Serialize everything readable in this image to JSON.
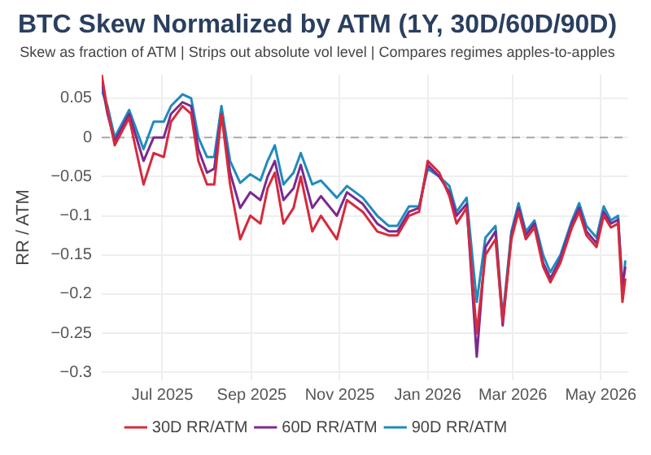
{
  "chart_data": {
    "type": "line",
    "title": "BTC Skew Normalized by ATM (1Y, 30D/60D/90D)",
    "subtitle": "Skew as fraction of ATM | Strips out absolute vol level | Compares regimes apples-to-apples",
    "ylabel": "RR / ATM",
    "x": [
      "2025-05-20",
      "2025-05-24",
      "2025-05-29",
      "2025-06-08",
      "2025-06-18",
      "2025-06-25",
      "2025-07-02",
      "2025-07-07",
      "2025-07-15",
      "2025-07-21",
      "2025-07-26",
      "2025-08-01",
      "2025-08-06",
      "2025-08-11",
      "2025-08-17",
      "2025-08-24",
      "2025-08-31",
      "2025-09-07",
      "2025-09-12",
      "2025-09-17",
      "2025-09-23",
      "2025-09-30",
      "2025-10-05",
      "2025-10-13",
      "2025-10-19",
      "2025-10-30",
      "2025-11-06",
      "2025-11-17",
      "2025-11-27",
      "2025-12-05",
      "2025-12-11",
      "2025-12-19",
      "2025-12-26",
      "2026-01-01",
      "2026-01-09",
      "2026-01-16",
      "2026-01-21",
      "2026-01-28",
      "2026-02-04",
      "2026-02-10",
      "2026-02-17",
      "2026-02-22",
      "2026-02-28",
      "2026-03-05",
      "2026-03-10",
      "2026-03-16",
      "2026-03-22",
      "2026-03-27",
      "2026-04-03",
      "2026-04-11",
      "2026-04-16",
      "2026-04-21",
      "2026-04-28",
      "2026-05-03",
      "2026-05-08",
      "2026-05-13",
      "2026-05-16",
      "2026-05-18"
    ],
    "series": [
      {
        "name": "30D RR/ATM",
        "color": "#d62a3c",
        "values": [
          0.08,
          0.035,
          -0.01,
          0.025,
          -0.06,
          -0.02,
          -0.025,
          0.02,
          0.04,
          0.03,
          -0.03,
          -0.06,
          -0.06,
          0.03,
          -0.06,
          -0.13,
          -0.1,
          -0.11,
          -0.065,
          -0.045,
          -0.11,
          -0.09,
          -0.05,
          -0.12,
          -0.1,
          -0.13,
          -0.08,
          -0.095,
          -0.12,
          -0.125,
          -0.125,
          -0.1,
          -0.095,
          -0.03,
          -0.045,
          -0.075,
          -0.11,
          -0.09,
          -0.25,
          -0.15,
          -0.13,
          -0.235,
          -0.13,
          -0.095,
          -0.13,
          -0.115,
          -0.165,
          -0.185,
          -0.16,
          -0.115,
          -0.095,
          -0.125,
          -0.14,
          -0.1,
          -0.115,
          -0.11,
          -0.21,
          -0.18
        ]
      },
      {
        "name": "60D RR/ATM",
        "color": "#7b2a8f",
        "values": [
          0.07,
          0.03,
          -0.005,
          0.03,
          -0.03,
          0.0,
          0.0,
          0.03,
          0.045,
          0.04,
          -0.015,
          -0.045,
          -0.04,
          0.03,
          -0.045,
          -0.09,
          -0.07,
          -0.08,
          -0.05,
          -0.03,
          -0.08,
          -0.065,
          -0.035,
          -0.09,
          -0.075,
          -0.1,
          -0.07,
          -0.085,
          -0.11,
          -0.12,
          -0.12,
          -0.095,
          -0.09,
          -0.035,
          -0.05,
          -0.07,
          -0.1,
          -0.085,
          -0.28,
          -0.14,
          -0.12,
          -0.24,
          -0.125,
          -0.09,
          -0.125,
          -0.11,
          -0.16,
          -0.18,
          -0.155,
          -0.11,
          -0.09,
          -0.12,
          -0.135,
          -0.095,
          -0.11,
          -0.105,
          -0.19,
          -0.165
        ]
      },
      {
        "name": "90D RR/ATM",
        "color": "#1f8bbd",
        "values": [
          0.06,
          0.04,
          0.0,
          0.035,
          -0.015,
          0.02,
          0.02,
          0.04,
          0.055,
          0.05,
          0.0,
          -0.025,
          -0.025,
          0.04,
          -0.03,
          -0.058,
          -0.047,
          -0.055,
          -0.03,
          -0.01,
          -0.06,
          -0.045,
          -0.02,
          -0.06,
          -0.055,
          -0.077,
          -0.062,
          -0.077,
          -0.1,
          -0.113,
          -0.113,
          -0.088,
          -0.088,
          -0.04,
          -0.05,
          -0.062,
          -0.095,
          -0.077,
          -0.21,
          -0.128,
          -0.113,
          -0.23,
          -0.12,
          -0.084,
          -0.12,
          -0.106,
          -0.15,
          -0.172,
          -0.15,
          -0.106,
          -0.084,
          -0.113,
          -0.128,
          -0.088,
          -0.106,
          -0.1,
          -0.195,
          -0.157
        ]
      }
    ],
    "xlim": [
      "2025-05-20",
      "2026-05-20"
    ],
    "xticks": [
      {
        "value": "2025-07-01",
        "label": "Jul 2025"
      },
      {
        "value": "2025-09-01",
        "label": "Sep 2025"
      },
      {
        "value": "2025-11-01",
        "label": "Nov 2025"
      },
      {
        "value": "2026-01-01",
        "label": "Jan 2026"
      },
      {
        "value": "2026-03-01",
        "label": "Mar 2026"
      },
      {
        "value": "2026-05-01",
        "label": "May 2026"
      }
    ],
    "ylim": [
      -0.31,
      0.08
    ],
    "yticks": [
      0.05,
      0,
      {
        "value": -0.05,
        "label": "−0.05"
      },
      {
        "value": -0.1,
        "label": "−0.1"
      },
      {
        "value": -0.15,
        "label": "−0.15"
      },
      {
        "value": -0.2,
        "label": "−0.2"
      },
      {
        "value": -0.25,
        "label": "−0.25"
      },
      {
        "value": -0.3,
        "label": "−0.3"
      }
    ],
    "ref_lines": [
      {
        "axis": "y",
        "value": 0,
        "color": "#aaaaaa",
        "line_style": "dashed"
      }
    ],
    "grid": true,
    "legend": "bottom",
    "marker": "none",
    "line_style": "solid"
  }
}
